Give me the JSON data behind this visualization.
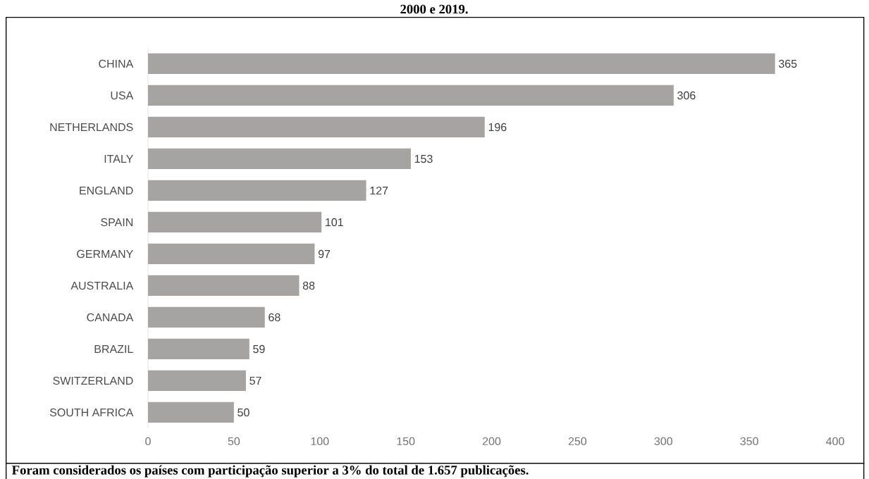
{
  "chart_data": {
    "type": "bar",
    "orientation": "horizontal",
    "title": "2000 e 2019.",
    "categories": [
      "CHINA",
      "USA",
      "NETHERLANDS",
      "ITALY",
      "ENGLAND",
      "SPAIN",
      "GERMANY",
      "AUSTRALIA",
      "CANADA",
      "BRAZIL",
      "SWITZERLAND",
      "SOUTH AFRICA"
    ],
    "values": [
      365,
      306,
      196,
      153,
      127,
      101,
      97,
      88,
      68,
      59,
      57,
      50
    ],
    "color": "#a6a3a3",
    "data_labels": true,
    "xlim": [
      0,
      400
    ],
    "xticks": [
      0,
      50,
      100,
      150,
      200,
      250,
      300,
      350,
      400
    ],
    "annotations": [
      "Foram considerados os países com participação superior a 3% do total de 1.657 publicações."
    ]
  }
}
